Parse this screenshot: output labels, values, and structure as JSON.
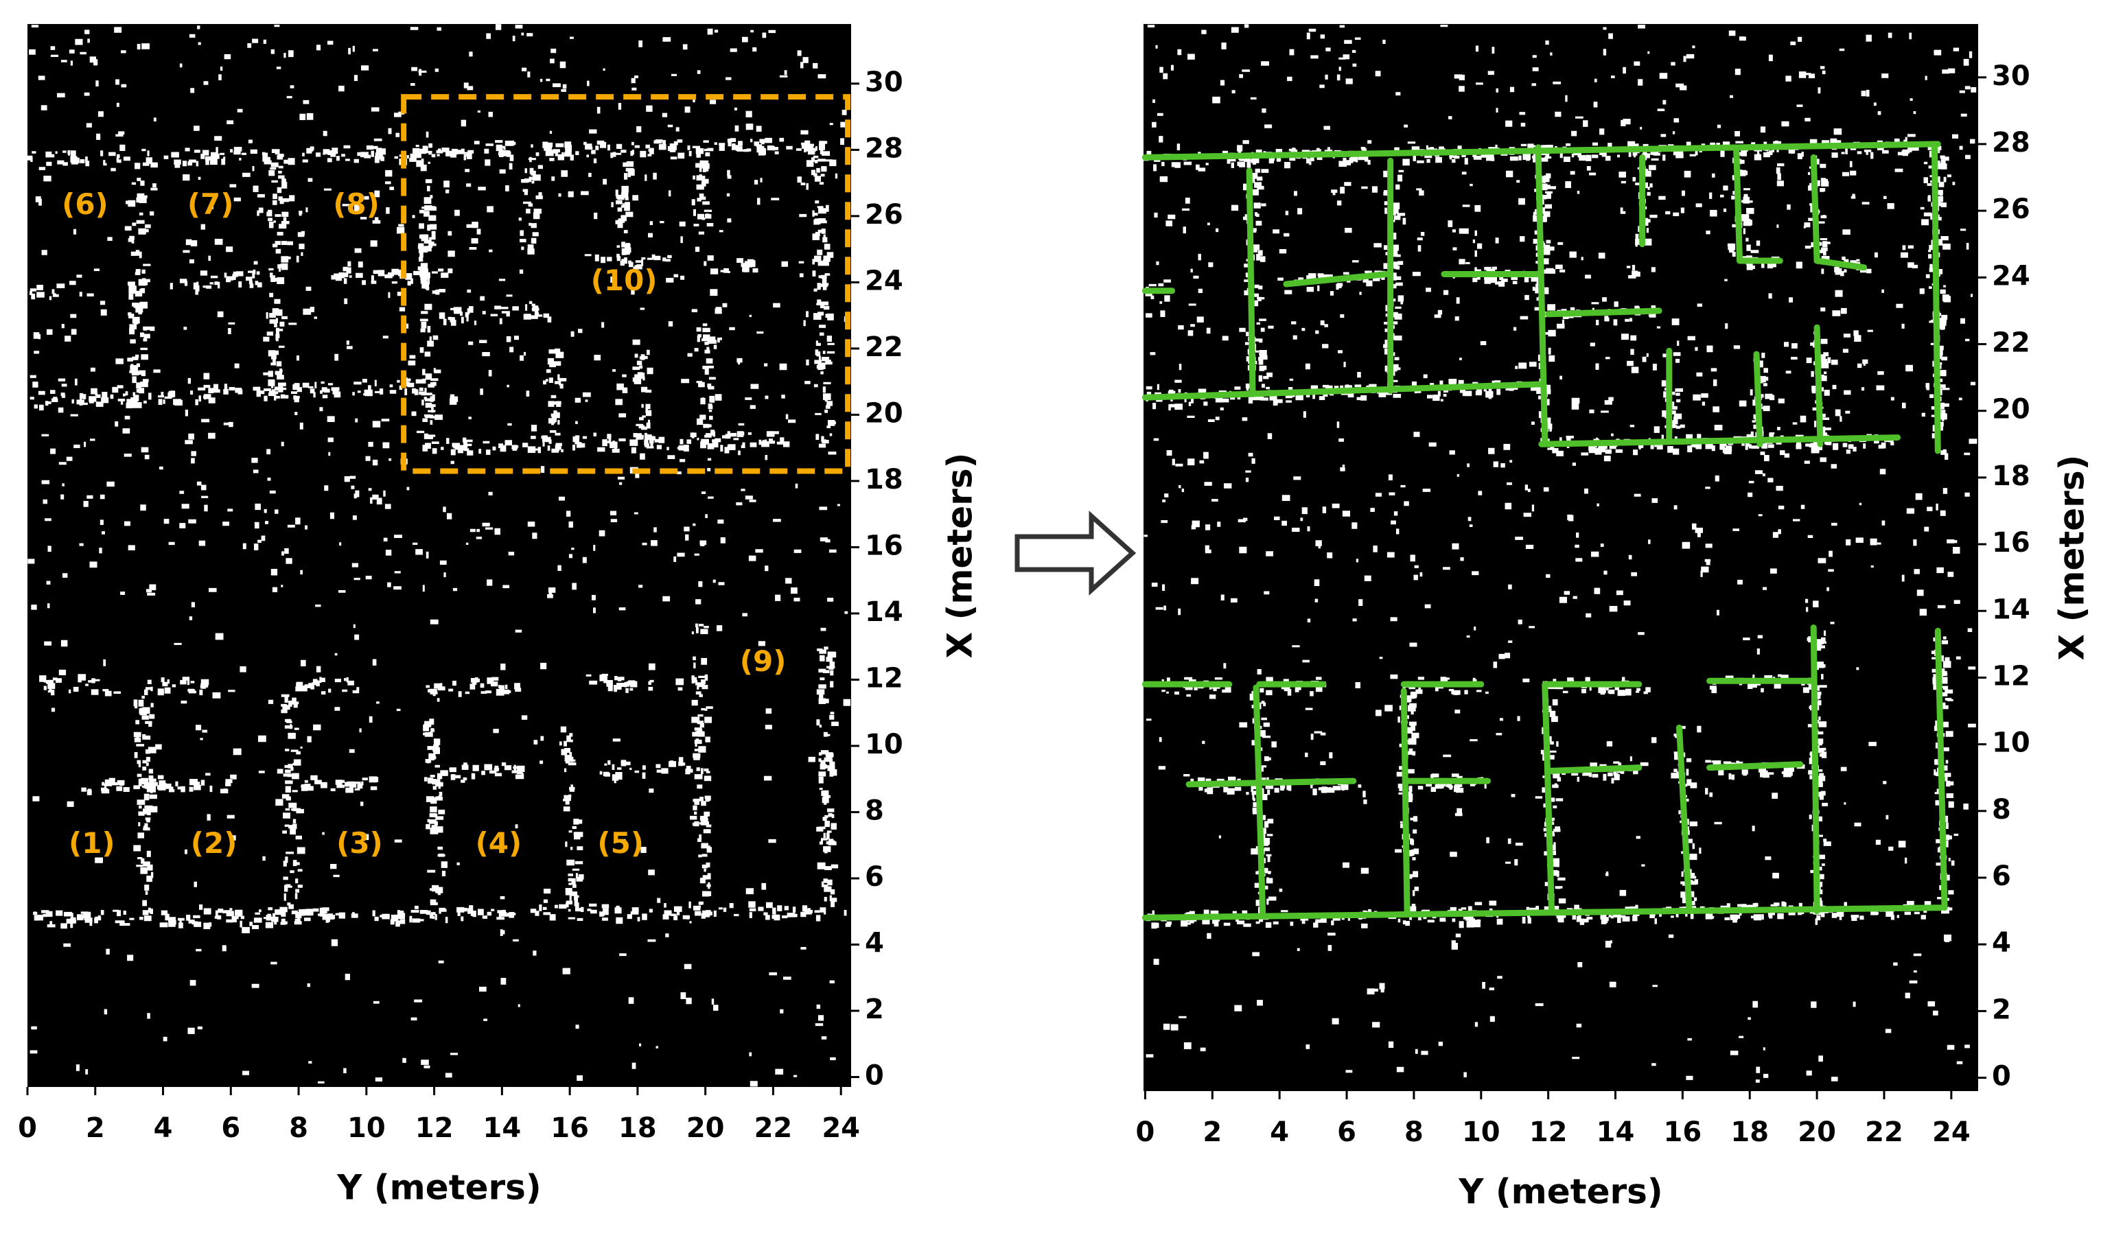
{
  "chart_data": [
    {
      "type": "annotated-map",
      "xlabel": "Y (meters)",
      "ylabel": "X (meters)",
      "xlim": [
        0,
        24.3
      ],
      "ylim": [
        -0.3,
        31.8
      ],
      "xticks": [
        0,
        2,
        4,
        6,
        8,
        10,
        12,
        14,
        16,
        18,
        20,
        22,
        24
      ],
      "yticks": [
        0,
        2,
        4,
        6,
        8,
        10,
        12,
        14,
        16,
        18,
        20,
        22,
        24,
        26,
        28,
        30
      ],
      "annotation_color": "#f5a800",
      "annotations": [
        {
          "text": "(1)",
          "x": 1.9,
          "y": 7.0
        },
        {
          "text": "(2)",
          "x": 5.5,
          "y": 7.0
        },
        {
          "text": "(3)",
          "x": 9.8,
          "y": 7.0
        },
        {
          "text": "(4)",
          "x": 13.9,
          "y": 7.0
        },
        {
          "text": "(5)",
          "x": 17.5,
          "y": 7.0
        },
        {
          "text": "(6)",
          "x": 1.7,
          "y": 26.3
        },
        {
          "text": "(7)",
          "x": 5.4,
          "y": 26.3
        },
        {
          "text": "(8)",
          "x": 9.7,
          "y": 26.3
        },
        {
          "text": "(9)",
          "x": 21.7,
          "y": 12.5
        },
        {
          "text": "(10)",
          "x": 17.6,
          "y": 24.0
        }
      ],
      "highlight": {
        "x": [
          11.1,
          24.2
        ],
        "y": [
          18.3,
          29.6
        ]
      }
    },
    {
      "type": "line-segments",
      "xlabel": "Y (meters)",
      "ylabel": "X (meters)",
      "xlim": [
        -0.05,
        24.8
      ],
      "ylim": [
        -0.4,
        31.6
      ],
      "xticks": [
        0,
        2,
        4,
        6,
        8,
        10,
        12,
        14,
        16,
        18,
        20,
        22,
        24
      ],
      "yticks": [
        0,
        2,
        4,
        6,
        8,
        10,
        12,
        14,
        16,
        18,
        20,
        22,
        24,
        26,
        28,
        30
      ],
      "color": "#4fc02a",
      "lines": [
        {
          "x": [
            0,
            23.6
          ],
          "values": [
            27.6,
            28.0
          ]
        },
        {
          "x": [
            0,
            11.8
          ],
          "values": [
            20.4,
            20.8
          ]
        },
        {
          "x": [
            11.8,
            22.4
          ],
          "values": [
            19.0,
            19.2
          ]
        },
        {
          "x": [
            3.1,
            3.2
          ],
          "values": [
            27.2,
            20.5
          ]
        },
        {
          "x": [
            7.3,
            7.3
          ],
          "values": [
            27.5,
            20.6
          ]
        },
        {
          "x": [
            11.7,
            11.9
          ],
          "values": [
            27.9,
            19.1
          ]
        },
        {
          "x": [
            14.8,
            14.8
          ],
          "values": [
            27.6,
            25.0
          ]
        },
        {
          "x": [
            17.6,
            17.7
          ],
          "values": [
            27.8,
            24.5
          ]
        },
        {
          "x": [
            19.9,
            20.0
          ],
          "values": [
            27.6,
            24.5
          ]
        },
        {
          "x": [
            23.5,
            23.6
          ],
          "values": [
            28.0,
            18.8
          ]
        },
        {
          "x": [
            4.2,
            7.2
          ],
          "values": [
            23.8,
            24.1
          ]
        },
        {
          "x": [
            8.9,
            11.7
          ],
          "values": [
            24.1,
            24.1
          ]
        },
        {
          "x": [
            12.0,
            15.3
          ],
          "values": [
            22.9,
            23.0
          ]
        },
        {
          "x": [
            17.7,
            18.9
          ],
          "values": [
            24.5,
            24.5
          ]
        },
        {
          "x": [
            20.0,
            21.4
          ],
          "values": [
            24.5,
            24.3
          ]
        },
        {
          "x": [
            0,
            0.8
          ],
          "values": [
            23.6,
            23.6
          ]
        },
        {
          "x": [
            15.6,
            15.6
          ],
          "values": [
            21.8,
            19.2
          ]
        },
        {
          "x": [
            18.2,
            18.3
          ],
          "values": [
            21.7,
            19.0
          ]
        },
        {
          "x": [
            20.0,
            20.1
          ],
          "values": [
            22.5,
            19.0
          ]
        },
        {
          "x": [
            0,
            23.7
          ],
          "values": [
            4.8,
            5.1
          ]
        },
        {
          "x": [
            0,
            2.5
          ],
          "values": [
            11.8,
            11.8
          ]
        },
        {
          "x": [
            3.4,
            5.3
          ],
          "values": [
            11.8,
            11.8
          ]
        },
        {
          "x": [
            7.7,
            10.0
          ],
          "values": [
            11.8,
            11.8
          ]
        },
        {
          "x": [
            12.0,
            14.7
          ],
          "values": [
            11.8,
            11.8
          ]
        },
        {
          "x": [
            16.8,
            19.9
          ],
          "values": [
            11.9,
            11.9
          ]
        },
        {
          "x": [
            1.3,
            6.2
          ],
          "values": [
            8.8,
            8.9
          ]
        },
        {
          "x": [
            7.8,
            10.2
          ],
          "values": [
            8.9,
            8.9
          ]
        },
        {
          "x": [
            12.0,
            14.7
          ],
          "values": [
            9.2,
            9.3
          ]
        },
        {
          "x": [
            16.8,
            19.5
          ],
          "values": [
            9.3,
            9.4
          ]
        },
        {
          "x": [
            3.3,
            3.5
          ],
          "values": [
            11.7,
            4.9
          ]
        },
        {
          "x": [
            7.7,
            7.8
          ],
          "values": [
            11.6,
            4.9
          ]
        },
        {
          "x": [
            11.9,
            12.1
          ],
          "values": [
            11.8,
            5.0
          ]
        },
        {
          "x": [
            15.9,
            16.2
          ],
          "values": [
            10.5,
            5.0
          ]
        },
        {
          "x": [
            19.9,
            20.0
          ],
          "values": [
            13.5,
            5.0
          ]
        },
        {
          "x": [
            23.6,
            23.8
          ],
          "values": [
            13.4,
            5.1
          ]
        }
      ]
    }
  ]
}
